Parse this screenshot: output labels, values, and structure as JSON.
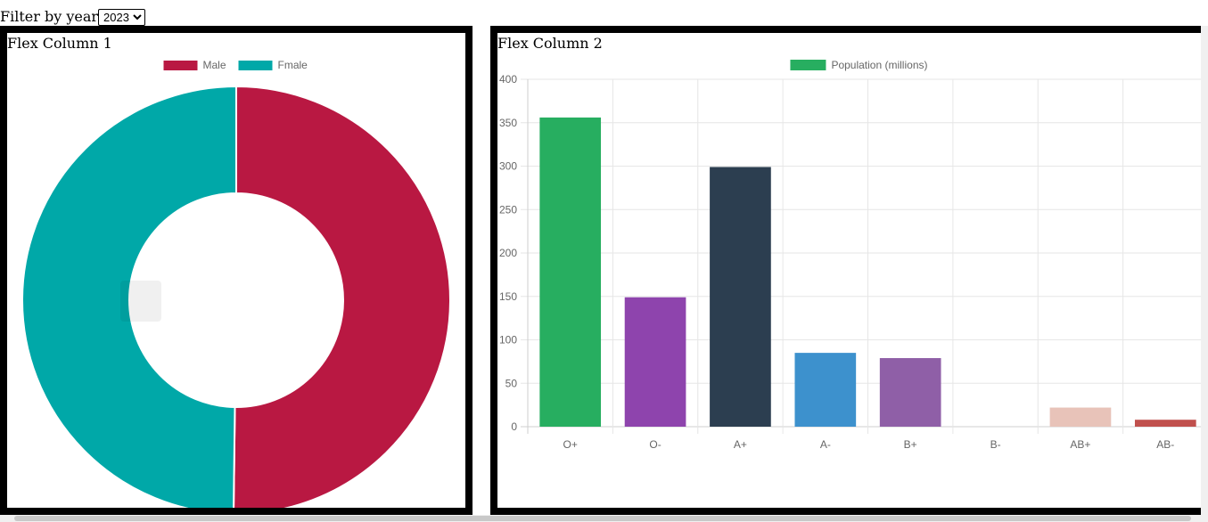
{
  "filter": {
    "label": "Filter by year",
    "selected": "2023",
    "options": [
      "2023"
    ]
  },
  "panel1": {
    "title": "Flex Column 1",
    "chart_data": {
      "type": "pie",
      "subtype": "doughnut",
      "labels": [
        "Male",
        "Fmale"
      ],
      "values": [
        50.2,
        49.8
      ],
      "colors": [
        "#b91842",
        "#00a8a8"
      ],
      "legend": "top"
    }
  },
  "panel2": {
    "title": "Flex Column 2",
    "chart_data": {
      "type": "bar",
      "categories": [
        "O+",
        "O-",
        "A+",
        "A-",
        "B+",
        "B-",
        "AB+",
        "AB-"
      ],
      "series": [
        {
          "name": "Population (millions)",
          "values": [
            356,
            149,
            299,
            85,
            79,
            0,
            22,
            8
          ]
        }
      ],
      "colors": [
        "#27ae60",
        "#8e44ad",
        "#2c3e50",
        "#3d91cd",
        "#8f5fa7",
        "#e8e8e8",
        "#e8c3b9",
        "#c0504d"
      ],
      "legend_color": "#27ae60",
      "ylim": [
        0,
        400
      ],
      "yticks": [
        0,
        50,
        100,
        150,
        200,
        250,
        300,
        350,
        400
      ],
      "grid": true,
      "legend": "top"
    }
  }
}
